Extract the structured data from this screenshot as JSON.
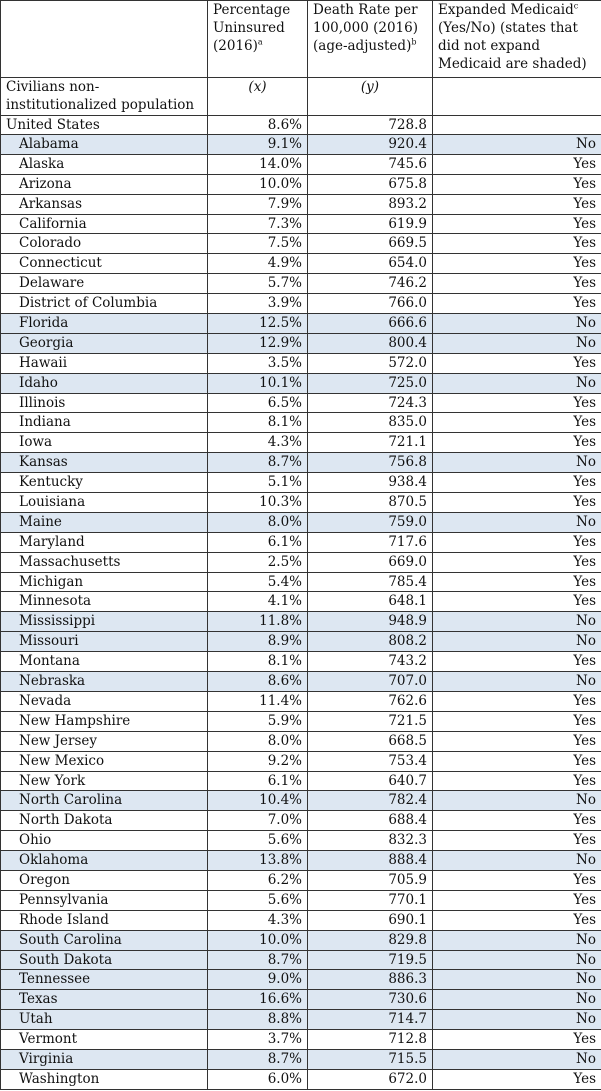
{
  "header": {
    "col1": "",
    "col2": "Percentage Uninsured (2016)",
    "col2_sup": "a",
    "col3": "Death Rate per 100,000 (2016) (age-adjusted)",
    "col3_sup": "b",
    "col4_pre": "Expanded Medicaid",
    "col4_sup": "c",
    "col4_post": " (Yes/No) (states that did not expand Medicaid are shaded)"
  },
  "variables": {
    "label": "Civilians non-institutionalized population",
    "x": "(x)",
    "y": "(y)"
  },
  "us": {
    "name": "United States",
    "uninsured": "8.6%",
    "death_rate": "728.8",
    "expanded": ""
  },
  "states": [
    {
      "name": "Alabama",
      "uninsured": "9.1%",
      "death_rate": "920.4",
      "expanded": "No"
    },
    {
      "name": "Alaska",
      "uninsured": "14.0%",
      "death_rate": "745.6",
      "expanded": "Yes"
    },
    {
      "name": "Arizona",
      "uninsured": "10.0%",
      "death_rate": "675.8",
      "expanded": "Yes"
    },
    {
      "name": "Arkansas",
      "uninsured": "7.9%",
      "death_rate": "893.2",
      "expanded": "Yes"
    },
    {
      "name": "California",
      "uninsured": "7.3%",
      "death_rate": "619.9",
      "expanded": "Yes"
    },
    {
      "name": "Colorado",
      "uninsured": "7.5%",
      "death_rate": "669.5",
      "expanded": "Yes"
    },
    {
      "name": "Connecticut",
      "uninsured": "4.9%",
      "death_rate": "654.0",
      "expanded": "Yes"
    },
    {
      "name": "Delaware",
      "uninsured": "5.7%",
      "death_rate": "746.2",
      "expanded": "Yes"
    },
    {
      "name": "District of Columbia",
      "uninsured": "3.9%",
      "death_rate": "766.0",
      "expanded": "Yes"
    },
    {
      "name": "Florida",
      "uninsured": "12.5%",
      "death_rate": "666.6",
      "expanded": "No"
    },
    {
      "name": "Georgia",
      "uninsured": "12.9%",
      "death_rate": "800.4",
      "expanded": "No"
    },
    {
      "name": "Hawaii",
      "uninsured": "3.5%",
      "death_rate": "572.0",
      "expanded": "Yes"
    },
    {
      "name": "Idaho",
      "uninsured": "10.1%",
      "death_rate": "725.0",
      "expanded": "No"
    },
    {
      "name": "Illinois",
      "uninsured": "6.5%",
      "death_rate": "724.3",
      "expanded": "Yes"
    },
    {
      "name": "Indiana",
      "uninsured": "8.1%",
      "death_rate": "835.0",
      "expanded": "Yes"
    },
    {
      "name": "Iowa",
      "uninsured": "4.3%",
      "death_rate": "721.1",
      "expanded": "Yes"
    },
    {
      "name": "Kansas",
      "uninsured": "8.7%",
      "death_rate": "756.8",
      "expanded": "No"
    },
    {
      "name": "Kentucky",
      "uninsured": "5.1%",
      "death_rate": "938.4",
      "expanded": "Yes"
    },
    {
      "name": "Louisiana",
      "uninsured": "10.3%",
      "death_rate": "870.5",
      "expanded": "Yes"
    },
    {
      "name": "Maine",
      "uninsured": "8.0%",
      "death_rate": "759.0",
      "expanded": "No"
    },
    {
      "name": "Maryland",
      "uninsured": "6.1%",
      "death_rate": "717.6",
      "expanded": "Yes"
    },
    {
      "name": "Massachusetts",
      "uninsured": "2.5%",
      "death_rate": "669.0",
      "expanded": "Yes"
    },
    {
      "name": "Michigan",
      "uninsured": "5.4%",
      "death_rate": "785.4",
      "expanded": "Yes"
    },
    {
      "name": "Minnesota",
      "uninsured": "4.1%",
      "death_rate": "648.1",
      "expanded": "Yes"
    },
    {
      "name": "Mississippi",
      "uninsured": "11.8%",
      "death_rate": "948.9",
      "expanded": "No"
    },
    {
      "name": "Missouri",
      "uninsured": "8.9%",
      "death_rate": "808.2",
      "expanded": "No"
    },
    {
      "name": "Montana",
      "uninsured": "8.1%",
      "death_rate": "743.2",
      "expanded": "Yes"
    },
    {
      "name": "Nebraska",
      "uninsured": "8.6%",
      "death_rate": "707.0",
      "expanded": "No"
    },
    {
      "name": "Nevada",
      "uninsured": "11.4%",
      "death_rate": "762.6",
      "expanded": "Yes"
    },
    {
      "name": "New Hampshire",
      "uninsured": "5.9%",
      "death_rate": "721.5",
      "expanded": "Yes"
    },
    {
      "name": "New Jersey",
      "uninsured": "8.0%",
      "death_rate": "668.5",
      "expanded": "Yes"
    },
    {
      "name": "New Mexico",
      "uninsured": "9.2%",
      "death_rate": "753.4",
      "expanded": "Yes"
    },
    {
      "name": "New York",
      "uninsured": "6.1%",
      "death_rate": "640.7",
      "expanded": "Yes"
    },
    {
      "name": "North Carolina",
      "uninsured": "10.4%",
      "death_rate": "782.4",
      "expanded": "No"
    },
    {
      "name": "North Dakota",
      "uninsured": "7.0%",
      "death_rate": "688.4",
      "expanded": "Yes"
    },
    {
      "name": "Ohio",
      "uninsured": "5.6%",
      "death_rate": "832.3",
      "expanded": "Yes"
    },
    {
      "name": "Oklahoma",
      "uninsured": "13.8%",
      "death_rate": "888.4",
      "expanded": "No"
    },
    {
      "name": "Oregon",
      "uninsured": "6.2%",
      "death_rate": "705.9",
      "expanded": "Yes"
    },
    {
      "name": "Pennsylvania",
      "uninsured": "5.6%",
      "death_rate": "770.1",
      "expanded": "Yes"
    },
    {
      "name": "Rhode Island",
      "uninsured": "4.3%",
      "death_rate": "690.1",
      "expanded": "Yes"
    },
    {
      "name": "South Carolina",
      "uninsured": "10.0%",
      "death_rate": "829.8",
      "expanded": "No"
    },
    {
      "name": "South Dakota",
      "uninsured": "8.7%",
      "death_rate": "719.5",
      "expanded": "No"
    },
    {
      "name": "Tennessee",
      "uninsured": "9.0%",
      "death_rate": "886.3",
      "expanded": "No"
    },
    {
      "name": "Texas",
      "uninsured": "16.6%",
      "death_rate": "730.6",
      "expanded": "No"
    },
    {
      "name": "Utah",
      "uninsured": "8.8%",
      "death_rate": "714.7",
      "expanded": "No"
    },
    {
      "name": "Vermont",
      "uninsured": "3.7%",
      "death_rate": "712.8",
      "expanded": "Yes"
    },
    {
      "name": "Virginia",
      "uninsured": "8.7%",
      "death_rate": "715.5",
      "expanded": "No"
    },
    {
      "name": "Washington",
      "uninsured": "6.0%",
      "death_rate": "672.0",
      "expanded": "Yes"
    }
  ],
  "colors": {
    "shaded": "#dde7f2"
  }
}
